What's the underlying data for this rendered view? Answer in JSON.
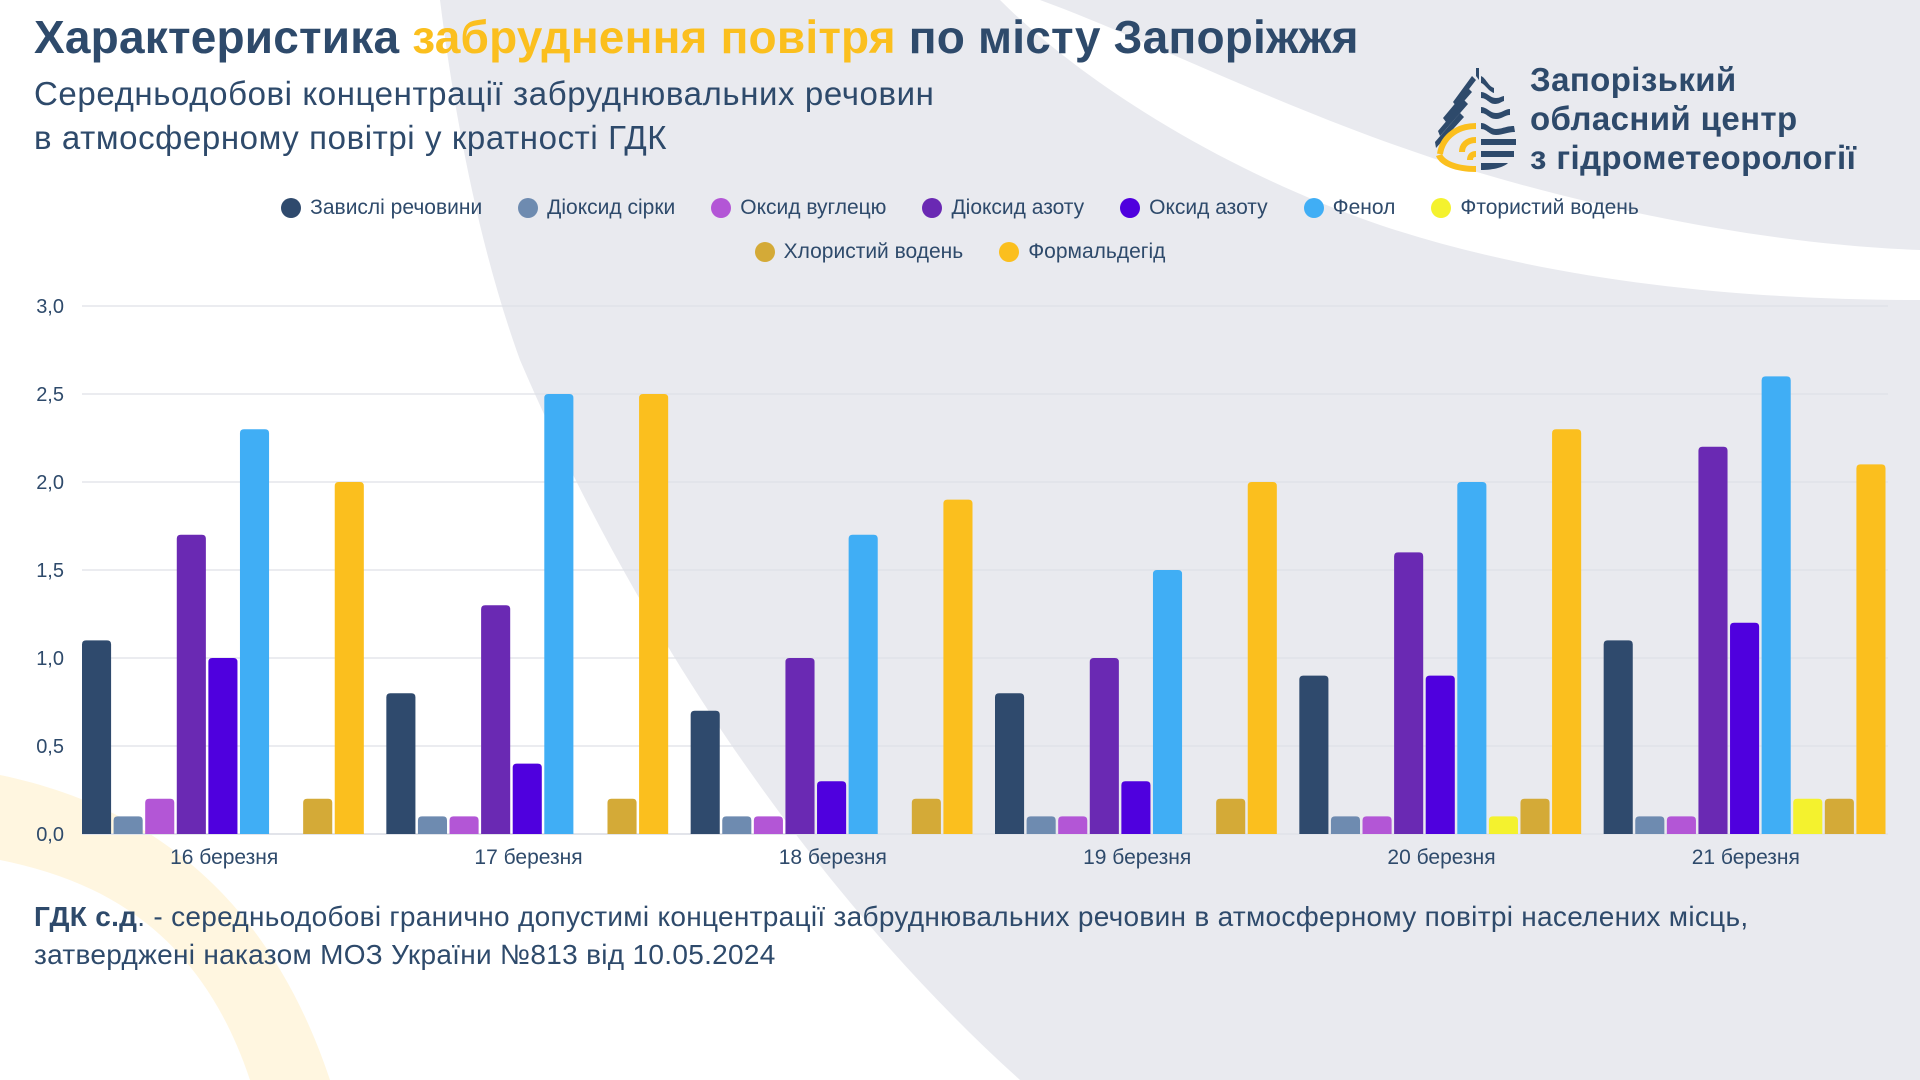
{
  "header": {
    "title_part1": "Характеристика ",
    "title_highlight": "забруднення повітря",
    "title_part2": " по місту Запоріжжя",
    "subtitle_line1": "Середньодобові концентрації забруднювальних речовин",
    "subtitle_line2": "в атмосферному повітрі у кратності ГДК"
  },
  "organization": {
    "logo_icon": "droplet-waves-logo-icon",
    "name_line1": "Запорізький",
    "name_line2": "обласний центр",
    "name_line3": "з гідрометеорології"
  },
  "colors": {
    "text": "#2e4a6b",
    "accent_yellow": "#fbbf1e",
    "background_shape": "#e9eaef",
    "background_arc": "#fff6e0"
  },
  "footnote": {
    "term": "ГДК с.д",
    "text": ". - середньодобові гранично допустимі концентрації забруднювальних речовин в атмосферному повітрі населених місць, затверджені наказом МОЗ України №813 від 10.05.2024"
  },
  "chart_data": {
    "type": "bar",
    "title": "Середньодобові концентрації забруднювальних речовин в атмосферному повітрі у кратності ГДК",
    "xlabel": "",
    "ylabel": "",
    "ylim": [
      0,
      3.0
    ],
    "yticks": [
      "0,0",
      "0,5",
      "1,0",
      "1,5",
      "2,0",
      "2,5",
      "3,0"
    ],
    "ytick_values": [
      0,
      0.5,
      1.0,
      1.5,
      2.0,
      2.5,
      3.0
    ],
    "grid": true,
    "legend_position": "top-center",
    "categories": [
      "16 березня",
      "17 березня",
      "18 березня",
      "19 березня",
      "20 березня",
      "21 березня"
    ],
    "series": [
      {
        "name": "Завислі речовини",
        "color": "#2f4a6d",
        "values": [
          1.1,
          0.8,
          0.7,
          0.8,
          0.9,
          1.1
        ]
      },
      {
        "name": "Діоксид сірки",
        "color": "#6e8bb0",
        "values": [
          0.1,
          0.1,
          0.1,
          0.1,
          0.1,
          0.1
        ]
      },
      {
        "name": "Оксид вуглецю",
        "color": "#b356d6",
        "values": [
          0.2,
          0.1,
          0.1,
          0.1,
          0.1,
          0.1
        ]
      },
      {
        "name": "Діоксид азоту",
        "color": "#6a29b3",
        "values": [
          1.7,
          1.3,
          1.0,
          1.0,
          1.6,
          2.2
        ]
      },
      {
        "name": "Оксид азоту",
        "color": "#4f00de",
        "values": [
          1.0,
          0.4,
          0.3,
          0.3,
          0.9,
          1.2
        ]
      },
      {
        "name": "Фенол",
        "color": "#40aef5",
        "values": [
          2.3,
          2.5,
          1.7,
          1.5,
          2.0,
          2.6
        ]
      },
      {
        "name": "Фтористий водень",
        "color": "#f4f22e",
        "values": [
          0,
          0,
          0,
          0,
          0.1,
          0.2
        ]
      },
      {
        "name": "Хлористий водень",
        "color": "#d4aa37",
        "values": [
          0.2,
          0.2,
          0.2,
          0.2,
          0.2,
          0.2
        ]
      },
      {
        "name": "Формальдегід",
        "color": "#fbbf1e",
        "values": [
          2.0,
          2.5,
          1.9,
          2.0,
          2.3,
          2.1
        ]
      }
    ]
  }
}
